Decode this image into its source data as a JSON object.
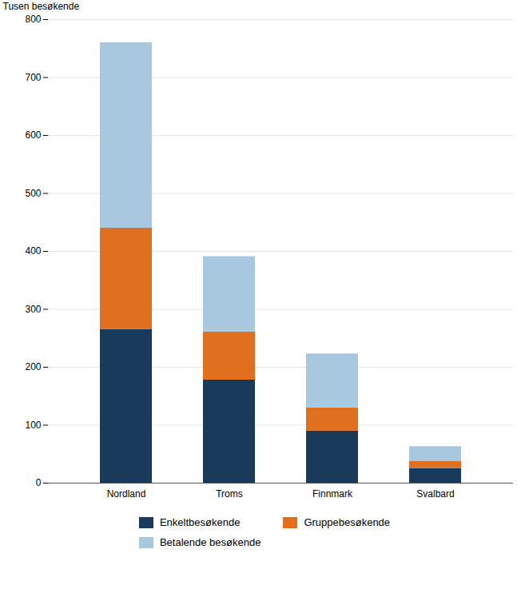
{
  "chart_data": {
    "type": "bar",
    "stacked": true,
    "categories": [
      "Nordland",
      "Troms",
      "Finnmark",
      "Svalbard"
    ],
    "series": [
      {
        "name": "Enkeltbesøkende",
        "color": "#1a3a5c",
        "values": [
          265,
          178,
          90,
          25
        ]
      },
      {
        "name": "Gruppebesøkende",
        "color": "#e07020",
        "values": [
          175,
          83,
          40,
          13
        ]
      },
      {
        "name": "Betalende besøkende",
        "color": "#a8c8e0",
        "values": [
          320,
          130,
          93,
          25
        ]
      }
    ],
    "ylabel": "Tusen besøkende",
    "ylim": [
      0,
      800
    ],
    "yticks": [
      0,
      100,
      200,
      300,
      400,
      500,
      600,
      700,
      800
    ],
    "grid": true,
    "legend": "bottom"
  }
}
